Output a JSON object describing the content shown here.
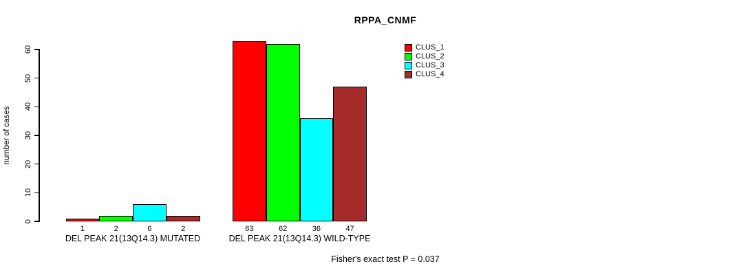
{
  "title": "RPPA_CNMF",
  "ylabel": "number of cases",
  "footer": "Fisher's exact test P = 0.037",
  "chart_data": {
    "type": "bar",
    "title": "RPPA_CNMF",
    "xlabel": "",
    "ylabel": "number of cases",
    "categories": [
      "DEL PEAK 21(13Q14.3) MUTATED",
      "DEL PEAK 21(13Q14.3) WILD-TYPE"
    ],
    "series": [
      {
        "name": "CLUS_1",
        "color": "#ff0000",
        "values": [
          1,
          63
        ]
      },
      {
        "name": "CLUS_2",
        "color": "#00ff00",
        "values": [
          2,
          62
        ]
      },
      {
        "name": "CLUS_3",
        "color": "#00ffff",
        "values": [
          6,
          36
        ]
      },
      {
        "name": "CLUS_4",
        "color": "#a52a2a",
        "values": [
          2,
          47
        ]
      }
    ],
    "bar_value_labels": [
      [
        1,
        2,
        6,
        2
      ],
      [
        63,
        62,
        36,
        47
      ]
    ],
    "ylim": [
      0,
      60
    ],
    "yticks": [
      0,
      10,
      20,
      30,
      40,
      50,
      60
    ],
    "grid": false,
    "legend_position": "top-right",
    "annotation": "Fisher's exact test P = 0.037"
  }
}
